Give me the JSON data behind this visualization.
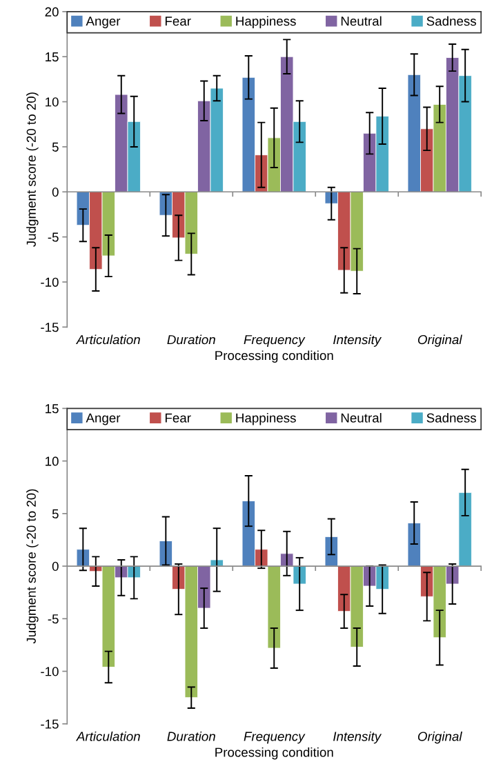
{
  "chart_data": [
    {
      "type": "bar",
      "xlabel": "Processing condition",
      "ylabel": "Judgment score (-20 to 20)",
      "categories": [
        "Articulation",
        "Duration",
        "Frequency",
        "Intensity",
        "Original"
      ],
      "series": [
        {
          "name": "Anger",
          "color": "#4f81bd",
          "values": [
            -3.7,
            -2.6,
            12.7,
            -1.3,
            13.0
          ],
          "errors": [
            1.8,
            2.3,
            2.4,
            1.8,
            2.3
          ]
        },
        {
          "name": "Fear",
          "color": "#c0504d",
          "values": [
            -8.6,
            -5.1,
            4.1,
            -8.7,
            7.0
          ],
          "errors": [
            2.4,
            2.5,
            3.6,
            2.5,
            2.4
          ]
        },
        {
          "name": "Happiness",
          "color": "#9bbb59",
          "values": [
            -7.1,
            -6.9,
            6.0,
            -8.8,
            9.7
          ],
          "errors": [
            2.3,
            2.3,
            3.3,
            2.5,
            2.0
          ]
        },
        {
          "name": "Neutral",
          "color": "#8064a2",
          "values": [
            10.8,
            10.1,
            15.0,
            6.5,
            14.9
          ],
          "errors": [
            2.1,
            2.2,
            1.9,
            2.3,
            1.5
          ]
        },
        {
          "name": "Sadness",
          "color": "#4bacc6",
          "values": [
            7.8,
            11.5,
            7.8,
            8.4,
            12.9
          ],
          "errors": [
            2.8,
            1.4,
            2.3,
            3.1,
            2.9
          ]
        }
      ],
      "ylim": [
        -15,
        20
      ],
      "yticks": [
        -15,
        -10,
        -5,
        0,
        5,
        10,
        15,
        20
      ],
      "legend": "top"
    },
    {
      "type": "bar",
      "xlabel": "Processing condition",
      "ylabel": "Judgment score (-20 to 20)",
      "categories": [
        "Articulation",
        "Duration",
        "Frequency",
        "Intensity",
        "Original"
      ],
      "series": [
        {
          "name": "Anger",
          "color": "#4f81bd",
          "values": [
            1.6,
            2.4,
            6.2,
            2.8,
            4.1
          ],
          "errors": [
            2.0,
            2.3,
            2.4,
            1.7,
            2.0
          ]
        },
        {
          "name": "Fear",
          "color": "#c0504d",
          "values": [
            -0.5,
            -2.2,
            1.6,
            -4.3,
            -2.9
          ],
          "errors": [
            1.4,
            2.4,
            1.8,
            1.6,
            2.3
          ]
        },
        {
          "name": "Happiness",
          "color": "#9bbb59",
          "values": [
            -9.6,
            -12.5,
            -7.8,
            -7.7,
            -6.8
          ],
          "errors": [
            1.5,
            1.0,
            1.9,
            1.8,
            2.6
          ]
        },
        {
          "name": "Neutral",
          "color": "#8064a2",
          "values": [
            -1.1,
            -4.0,
            1.2,
            -1.9,
            -1.7
          ],
          "errors": [
            1.7,
            1.9,
            2.1,
            1.9,
            1.9
          ]
        },
        {
          "name": "Sadness",
          "color": "#4bacc6",
          "values": [
            -1.1,
            0.6,
            -1.7,
            -2.2,
            7.0
          ],
          "errors": [
            2.0,
            3.0,
            2.5,
            2.3,
            2.2
          ]
        }
      ],
      "ylim": [
        -15,
        15
      ],
      "yticks": [
        -15,
        -10,
        -5,
        0,
        5,
        10,
        15
      ],
      "legend": "top"
    }
  ]
}
